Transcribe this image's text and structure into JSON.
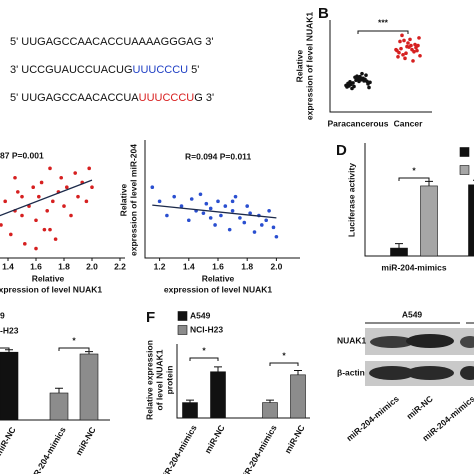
{
  "panel_letters": [
    "B",
    "D",
    "F"
  ],
  "sequences": [
    {
      "parts": [
        "5' UUGAGCCAACACCUAAAAGGGAG 3'"
      ],
      "colors": [
        "#111111"
      ]
    },
    {
      "parts": [
        "3' UCCGUAUCCUACUG",
        "UUUCCCU",
        " 5'"
      ],
      "colors": [
        "#111111",
        "#1f3fc4",
        "#111111"
      ]
    },
    {
      "parts": [
        "5' UUGAGCCAACACCUA",
        "UUUCCCU",
        "G 3'"
      ],
      "colors": [
        "#111111",
        "#d81e1e",
        "#111111"
      ]
    }
  ],
  "chart_data": [
    {
      "type": "strip",
      "categories": [
        "Paracancerous",
        "Cancer"
      ],
      "y_label": [
        "Relative",
        "expression of level NUAK1"
      ],
      "annotation": "***",
      "ylim": [
        0.4,
        2.2
      ],
      "series": [
        {
          "color": "#111111",
          "values": [
            0.92,
            1.05,
            0.98,
            1.1,
            0.88,
            1.02,
            0.95,
            1.08,
            1.0,
            0.9,
            1.12,
            0.97,
            1.04,
            0.86,
            1.01,
            0.94,
            1.06,
            0.99,
            1.15,
            0.91,
            1.03,
            0.96,
            1.09,
            0.89,
            1.0
          ]
        },
        {
          "color": "#d62020",
          "values": [
            1.62,
            1.75,
            1.5,
            1.68,
            1.85,
            1.55,
            1.7,
            1.45,
            1.6,
            1.8,
            1.66,
            1.52,
            1.72,
            1.9,
            1.58,
            1.64,
            1.4,
            1.78,
            1.62,
            1.56,
            1.7,
            1.48,
            1.82,
            1.6,
            1.67
          ]
        }
      ]
    },
    {
      "type": "scatter",
      "stats": "87 P=0.001",
      "x_label": [
        "Relative",
        "expression of level NUAK1"
      ],
      "color": "#d62020",
      "xlim": [
        1.2,
        2.2
      ],
      "ylim": [
        0,
        2.5
      ],
      "xticks": [
        1.4,
        1.6,
        1.8,
        {
          "value": 2,
          "label": "2.0"
        },
        2.2
      ],
      "x": [
        1.35,
        1.38,
        1.42,
        1.45,
        1.47,
        1.5,
        1.52,
        1.55,
        1.58,
        1.6,
        1.62,
        1.64,
        1.66,
        1.68,
        1.7,
        1.72,
        1.74,
        1.76,
        1.78,
        1.8,
        1.82,
        1.85,
        1.88,
        1.9,
        1.93,
        1.96,
        1.98,
        2.0,
        1.6,
        1.7,
        1.5,
        1.45
      ],
      "y": [
        0.7,
        1.2,
        0.5,
        1.0,
        1.4,
        0.9,
        0.3,
        1.1,
        1.5,
        0.8,
        1.3,
        1.6,
        0.6,
        1.0,
        1.9,
        1.2,
        0.4,
        1.4,
        1.7,
        1.1,
        1.5,
        0.9,
        1.8,
        1.3,
        1.6,
        1.2,
        1.9,
        1.5,
        0.2,
        0.6,
        1.3,
        1.7
      ],
      "trend": {
        "x": [
          1.3,
          2.0
        ],
        "y": [
          0.85,
          1.65
        ]
      }
    },
    {
      "type": "scatter",
      "stats": "R=0.094 P=0.011",
      "x_label": [
        "Relative",
        "expression of level NUAK1"
      ],
      "y_label": [
        "Relative",
        "expression of level miR-204"
      ],
      "color": "#2a4fd0",
      "xlim": [
        1.1,
        2.1
      ],
      "ylim": [
        0,
        2.5
      ],
      "xticks": [
        1.2,
        1.4,
        1.6,
        1.8,
        {
          "value": 2,
          "label": "2.0"
        }
      ],
      "x": [
        1.15,
        1.2,
        1.25,
        1.3,
        1.35,
        1.4,
        1.42,
        1.45,
        1.48,
        1.5,
        1.52,
        1.55,
        1.58,
        1.6,
        1.62,
        1.65,
        1.68,
        1.7,
        1.72,
        1.75,
        1.78,
        1.8,
        1.82,
        1.85,
        1.88,
        1.9,
        1.93,
        1.95,
        1.98,
        2.0,
        1.55,
        1.7
      ],
      "y": [
        1.5,
        1.2,
        0.9,
        1.3,
        1.1,
        0.8,
        1.25,
        1.0,
        1.35,
        0.95,
        1.15,
        1.05,
        0.7,
        1.2,
        0.9,
        1.1,
        0.6,
        1.0,
        1.3,
        0.85,
        0.75,
        1.1,
        0.95,
        0.55,
        0.9,
        0.7,
        0.8,
        1.0,
        0.65,
        0.45,
        0.85,
        1.2
      ],
      "trend": {
        "x": [
          1.15,
          2.0
        ],
        "y": [
          1.12,
          0.85
        ]
      }
    },
    {
      "type": "bar",
      "categories": [
        "miR-204-mimics",
        null
      ],
      "y_label": [
        "Luciferase activity"
      ],
      "annotations": [
        "*"
      ],
      "ylim": [
        0.4,
        1.4
      ],
      "series": [
        {
          "color": "#111111",
          "values": [
            0.47,
            1.03
          ],
          "errors": [
            0.04,
            0.04
          ]
        },
        {
          "color": "#a6a6a6",
          "values": [
            1.02,
            null
          ],
          "errors": [
            0.04,
            null
          ]
        }
      ]
    },
    {
      "type": "bar",
      "categories": [
        "miR-NC",
        "miR-204-mimics",
        "miR-NC"
      ],
      "annotations": [
        "*",
        "*"
      ],
      "ylim": [
        0,
        1.2
      ],
      "series": [
        {
          "name": "9",
          "color": "#111111",
          "values": [
            1.13,
            null,
            null
          ],
          "errors": [
            0.04,
            null,
            null
          ]
        },
        {
          "name": "-H23",
          "color": "#8c8c8c",
          "values": [
            null,
            0.45,
            1.1
          ],
          "errors": [
            null,
            0.08,
            0.04
          ]
        }
      ]
    },
    {
      "type": "bar",
      "categories": [
        "miR-204-mimics",
        "miR-NC",
        "miR-204-mimics",
        "miR-NC"
      ],
      "y_label": [
        "Relative expression",
        "of level NUAK1",
        "protein"
      ],
      "annotations": [
        "*",
        "*"
      ],
      "ylim": [
        0,
        1.2
      ],
      "series": [
        {
          "name": "A549",
          "color": "#111111",
          "values": [
            0.25,
            0.75,
            null,
            null
          ],
          "errors": [
            0.04,
            0.08,
            null,
            null
          ]
        },
        {
          "name": "NCI-H23",
          "color": "#8c8c8c",
          "values": [
            null,
            null,
            0.25,
            0.7
          ],
          "errors": [
            null,
            null,
            0.04,
            0.07
          ]
        }
      ]
    }
  ],
  "blot": {
    "title": "A549",
    "rows": [
      "NUAK1",
      "β-actin"
    ],
    "lanes": [
      "miR-204-mimics",
      "miR-NC",
      "miR-204-mimics"
    ]
  }
}
